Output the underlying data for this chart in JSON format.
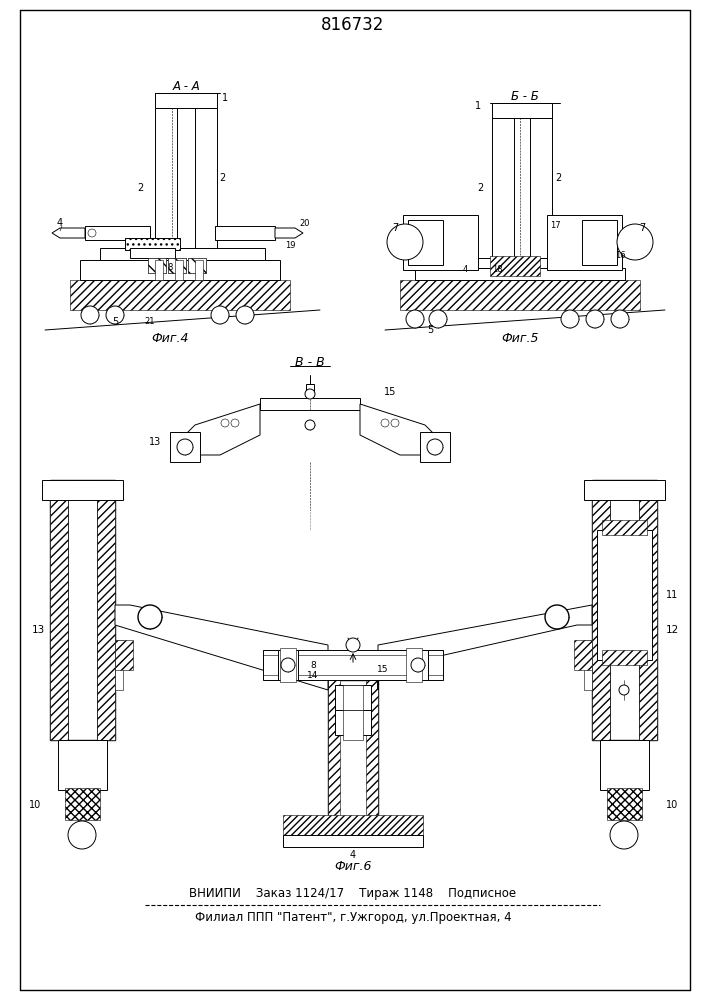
{
  "title": "816732",
  "bg_color": "#ffffff",
  "footer_line1": "ВНИИПИ    Заказ 1124/17    Тираж 1148    Подписное",
  "footer_line2": "Филиал ППП \"Патент\", г.Ужгород, ул.Проектная, 4",
  "fig4_label": "Фиг.4",
  "fig5_label": "Фиг.5",
  "fig6_label": "Фиг.6",
  "section_aa": "А - А",
  "section_bb": "Б - Б",
  "section_vv": "В - В"
}
